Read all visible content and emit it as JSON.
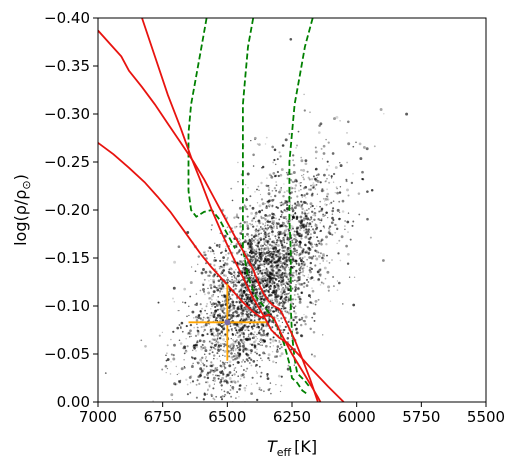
{
  "chart_data": {
    "type": "scatter",
    "xlabel_main": "T",
    "xlabel_sub": "eff",
    "xlabel_unit": "[K]",
    "ylabel_main": "log(ρ/ρ",
    "ylabel_sun": "⊙",
    "ylabel_close": ")",
    "xlim": [
      7000,
      5500
    ],
    "ylim": [
      0.0,
      -0.4
    ],
    "x_ticks": [
      7000,
      6750,
      6500,
      6250,
      6000,
      5750,
      5500
    ],
    "x_tick_labels": [
      "7000",
      "6750",
      "6500",
      "6250",
      "6000",
      "5750",
      "5500"
    ],
    "y_ticks": [
      0.0,
      -0.05,
      -0.1,
      -0.15,
      -0.2,
      -0.25,
      -0.3,
      -0.35,
      -0.4
    ],
    "y_tick_labels": [
      "0.00",
      "−0.05",
      "−0.10",
      "−0.15",
      "−0.20",
      "−0.25",
      "−0.30",
      "−0.35",
      "−0.40"
    ],
    "grid": false,
    "scatter_cloud": {
      "center_teff": 6370,
      "center_logrho": -0.125,
      "sigma_teff": 140,
      "sigma_logrho": 0.045,
      "n_points": 3500,
      "color": "#000000"
    },
    "target": {
      "teff": 6500,
      "logrho": -0.083,
      "teff_err": 150,
      "logrho_err": 0.04,
      "color": "#ffa500",
      "marker_color": "#7b6ea8"
    },
    "red_tracks": {
      "color": "#e8130f",
      "lines": [
        {
          "points": [
            [
              7000,
              -0.387
            ],
            [
              6950,
              -0.372
            ],
            [
              6910,
              -0.36
            ],
            [
              6880,
              -0.345
            ],
            [
              6830,
              -0.328
            ],
            [
              6780,
              -0.31
            ],
            [
              6730,
              -0.29
            ],
            [
              6680,
              -0.27
            ],
            [
              6630,
              -0.25
            ],
            [
              6590,
              -0.232
            ],
            [
              6550,
              -0.212
            ],
            [
              6510,
              -0.192
            ],
            [
              6470,
              -0.172
            ],
            [
              6430,
              -0.153
            ],
            [
              6400,
              -0.138
            ],
            [
              6380,
              -0.124
            ],
            [
              6360,
              -0.113
            ],
            [
              6340,
              -0.105
            ],
            [
              6320,
              -0.1
            ],
            [
              6300,
              -0.097
            ],
            [
              6290,
              -0.093
            ],
            [
              6270,
              -0.082
            ],
            [
              6240,
              -0.065
            ],
            [
              6210,
              -0.045
            ],
            [
              6180,
              -0.024
            ],
            [
              6150,
              0.0
            ]
          ]
        },
        {
          "points": [
            [
              7000,
              -0.27
            ],
            [
              6940,
              -0.258
            ],
            [
              6880,
              -0.244
            ],
            [
              6820,
              -0.229
            ],
            [
              6770,
              -0.214
            ],
            [
              6720,
              -0.198
            ],
            [
              6680,
              -0.183
            ],
            [
              6640,
              -0.168
            ],
            [
              6600,
              -0.153
            ],
            [
              6560,
              -0.14
            ],
            [
              6520,
              -0.128
            ],
            [
              6480,
              -0.116
            ],
            [
              6440,
              -0.104
            ],
            [
              6400,
              -0.094
            ],
            [
              6370,
              -0.088
            ],
            [
              6340,
              -0.091
            ],
            [
              6320,
              -0.087
            ],
            [
              6290,
              -0.07
            ],
            [
              6250,
              -0.05
            ],
            [
              6200,
              -0.028
            ],
            [
              6150,
              -0.005
            ],
            [
              6140,
              0.0
            ]
          ]
        },
        {
          "points": [
            [
              6830,
              -0.4
            ],
            [
              6780,
              -0.36
            ],
            [
              6730,
              -0.32
            ],
            [
              6680,
              -0.285
            ],
            [
              6640,
              -0.255
            ],
            [
              6600,
              -0.228
            ],
            [
              6560,
              -0.2
            ],
            [
              6520,
              -0.175
            ],
            [
              6480,
              -0.152
            ],
            [
              6440,
              -0.13
            ],
            [
              6400,
              -0.108
            ],
            [
              6360,
              -0.09
            ],
            [
              6330,
              -0.075
            ],
            [
              6300,
              -0.067
            ],
            [
              6270,
              -0.062
            ],
            [
              6220,
              -0.048
            ],
            [
              6170,
              -0.033
            ],
            [
              6110,
              -0.016
            ],
            [
              6050,
              0.0
            ]
          ]
        }
      ]
    },
    "green_tracks": {
      "color": "#008000",
      "style": "dashed",
      "lines": [
        {
          "points": [
            [
              6580,
              -0.4
            ],
            [
              6600,
              -0.37
            ],
            [
              6620,
              -0.34
            ],
            [
              6640,
              -0.31
            ],
            [
              6650,
              -0.28
            ],
            [
              6650,
              -0.25
            ],
            [
              6650,
              -0.22
            ],
            [
              6640,
              -0.2
            ],
            [
              6620,
              -0.193
            ],
            [
              6590,
              -0.198
            ],
            [
              6560,
              -0.2
            ],
            [
              6530,
              -0.19
            ],
            [
              6500,
              -0.175
            ],
            [
              6470,
              -0.16
            ]
          ]
        },
        {
          "points": [
            [
              6400,
              -0.4
            ],
            [
              6420,
              -0.37
            ],
            [
              6430,
              -0.34
            ],
            [
              6440,
              -0.31
            ],
            [
              6440,
              -0.28
            ],
            [
              6440,
              -0.24
            ],
            [
              6440,
              -0.2
            ],
            [
              6440,
              -0.16
            ],
            [
              6420,
              -0.13
            ],
            [
              6390,
              -0.11
            ],
            [
              6360,
              -0.1
            ],
            [
              6330,
              -0.09
            ],
            [
              6300,
              -0.075
            ],
            [
              6280,
              -0.06
            ],
            [
              6260,
              -0.04
            ],
            [
              6250,
              -0.025
            ],
            [
              6230,
              -0.02
            ],
            [
              6210,
              -0.012
            ],
            [
              6190,
              -0.008
            ]
          ]
        },
        {
          "points": [
            [
              6170,
              -0.4
            ],
            [
              6200,
              -0.37
            ],
            [
              6220,
              -0.34
            ],
            [
              6240,
              -0.31
            ],
            [
              6250,
              -0.28
            ],
            [
              6260,
              -0.25
            ],
            [
              6260,
              -0.22
            ],
            [
              6260,
              -0.19
            ],
            [
              6255,
              -0.16
            ],
            [
              6255,
              -0.13
            ],
            [
              6255,
              -0.1
            ],
            [
              6250,
              -0.07
            ],
            [
              6240,
              -0.045
            ],
            [
              6230,
              -0.03
            ],
            [
              6200,
              -0.022
            ],
            [
              6180,
              -0.015
            ]
          ]
        }
      ]
    }
  }
}
